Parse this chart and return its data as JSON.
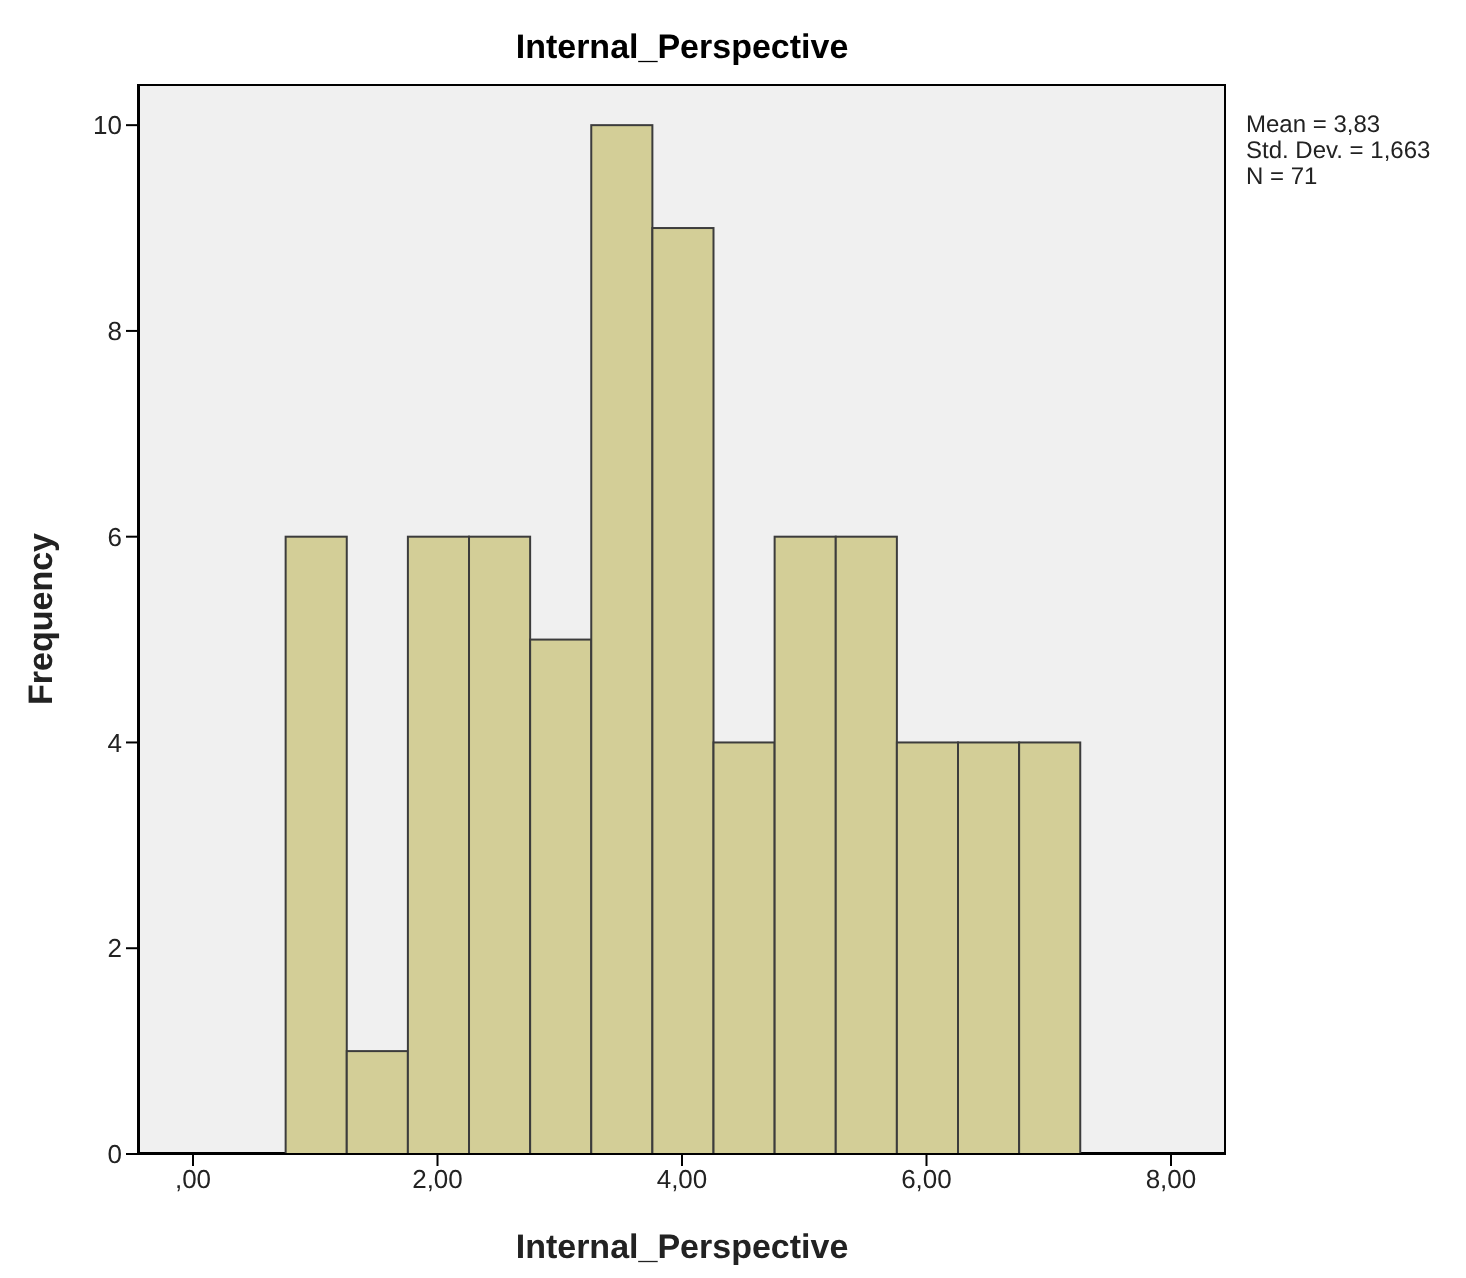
{
  "chart_data": {
    "type": "histogram",
    "title": "Internal_Perspective",
    "xlabel": "Internal_Perspective",
    "ylabel": "Frequency",
    "bins": [
      0.75,
      1.25,
      1.75,
      2.25,
      2.75,
      3.25,
      3.75,
      4.25,
      4.75,
      5.25,
      5.75,
      6.25,
      6.75,
      7.25
    ],
    "values": [
      6,
      1,
      6,
      6,
      5,
      10,
      9,
      4,
      6,
      6,
      4,
      4,
      4
    ],
    "color": "#d3ce97",
    "xlim": [
      -0.45,
      8.45
    ],
    "xticks": [
      {
        "value": 0,
        "label": ",00"
      },
      {
        "value": 2,
        "label": "2,00"
      },
      {
        "value": 4,
        "label": "4,00"
      },
      {
        "value": 6,
        "label": "6,00"
      },
      {
        "value": 8,
        "label": "8,00"
      }
    ],
    "ylim": [
      0,
      10.4
    ],
    "yticks": [
      0,
      2,
      4,
      6,
      8,
      10
    ],
    "grid": false,
    "annotations": [
      "Mean = 3,83",
      "Std. Dev. = 1,663",
      "N = 71"
    ]
  }
}
